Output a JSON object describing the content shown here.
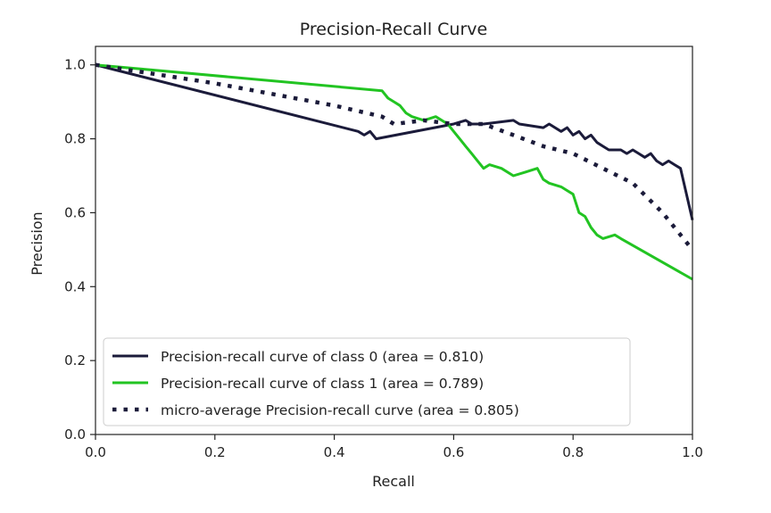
{
  "chart_data": {
    "type": "line",
    "title": "Precision-Recall Curve",
    "xlabel": "Recall",
    "ylabel": "Precision",
    "xlim": [
      0.0,
      1.0
    ],
    "ylim": [
      0.0,
      1.05
    ],
    "xticks": [
      "0.0",
      "0.2",
      "0.4",
      "0.6",
      "0.8",
      "1.0"
    ],
    "yticks": [
      "0.0",
      "0.2",
      "0.4",
      "0.6",
      "0.8",
      "1.0"
    ],
    "grid": false,
    "legend_position": "lower-left",
    "series": [
      {
        "name": "Precision-recall curve of class 0 (area = 0.810)",
        "color": "#1b1b3a",
        "style": "solid",
        "x": [
          0.0,
          0.44,
          0.45,
          0.46,
          0.47,
          0.6,
          0.62,
          0.63,
          0.65,
          0.7,
          0.71,
          0.75,
          0.76,
          0.78,
          0.79,
          0.8,
          0.81,
          0.82,
          0.83,
          0.84,
          0.85,
          0.86,
          0.88,
          0.89,
          0.9,
          0.91,
          0.92,
          0.93,
          0.94,
          0.95,
          0.96,
          0.97,
          0.98,
          1.0
        ],
        "y": [
          1.0,
          0.82,
          0.81,
          0.82,
          0.8,
          0.84,
          0.85,
          0.84,
          0.84,
          0.85,
          0.84,
          0.83,
          0.84,
          0.82,
          0.83,
          0.81,
          0.82,
          0.8,
          0.81,
          0.79,
          0.78,
          0.77,
          0.77,
          0.76,
          0.77,
          0.76,
          0.75,
          0.76,
          0.74,
          0.73,
          0.74,
          0.73,
          0.72,
          0.58
        ]
      },
      {
        "name": "Precision-recall curve of class 1 (area = 0.789)",
        "color": "#22c422",
        "style": "solid",
        "x": [
          0.0,
          0.48,
          0.49,
          0.5,
          0.51,
          0.52,
          0.53,
          0.55,
          0.57,
          0.59,
          0.6,
          0.61,
          0.62,
          0.63,
          0.64,
          0.65,
          0.66,
          0.68,
          0.7,
          0.72,
          0.74,
          0.75,
          0.76,
          0.78,
          0.8,
          0.81,
          0.82,
          0.83,
          0.84,
          0.85,
          0.87,
          0.88,
          1.0
        ],
        "y": [
          1.0,
          0.93,
          0.91,
          0.9,
          0.89,
          0.87,
          0.86,
          0.85,
          0.86,
          0.84,
          0.82,
          0.8,
          0.78,
          0.76,
          0.74,
          0.72,
          0.73,
          0.72,
          0.7,
          0.71,
          0.72,
          0.69,
          0.68,
          0.67,
          0.65,
          0.6,
          0.59,
          0.56,
          0.54,
          0.53,
          0.54,
          0.53,
          0.42
        ]
      },
      {
        "name": "micro-average Precision-recall curve (area = 0.805)",
        "color": "#1b1b3a",
        "style": "dotted",
        "x": [
          0.0,
          0.2,
          0.4,
          0.48,
          0.5,
          0.55,
          0.6,
          0.65,
          0.7,
          0.75,
          0.8,
          0.85,
          0.9,
          0.95,
          1.0
        ],
        "y": [
          1.0,
          0.95,
          0.89,
          0.86,
          0.84,
          0.85,
          0.84,
          0.84,
          0.81,
          0.78,
          0.76,
          0.72,
          0.68,
          0.6,
          0.5
        ]
      }
    ]
  }
}
